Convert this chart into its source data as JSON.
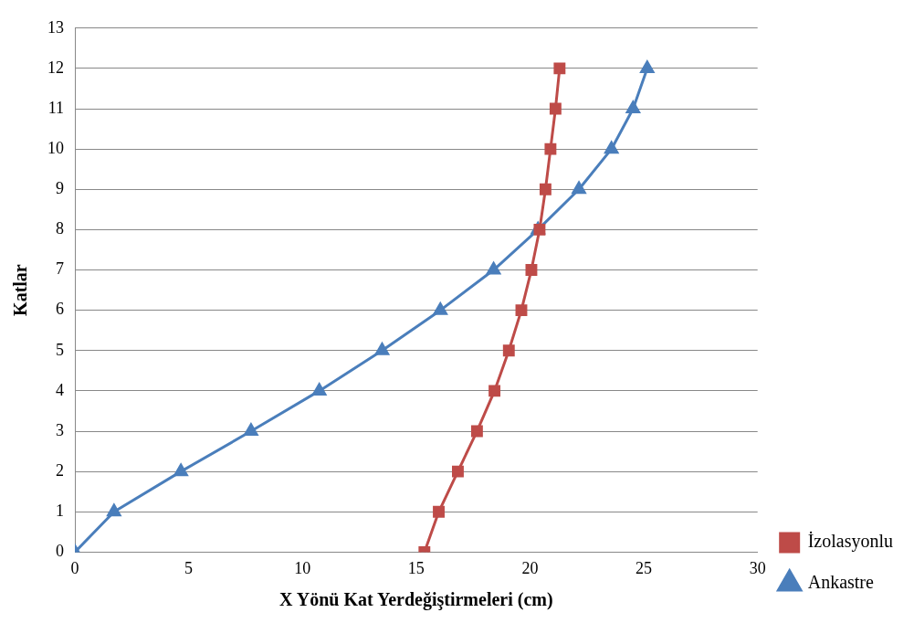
{
  "chart_data": {
    "type": "line",
    "xlabel": "X Yönü Kat Yerdeğiştirmeleri (cm)",
    "ylabel": "Katlar",
    "xlim": [
      0,
      30
    ],
    "xticks": [
      0,
      5,
      10,
      15,
      20,
      25,
      30
    ],
    "ylim": [
      0,
      13
    ],
    "yticks": [
      0,
      1,
      2,
      3,
      4,
      5,
      6,
      7,
      8,
      9,
      10,
      11,
      12,
      13
    ],
    "grid": "y",
    "legend": "right",
    "line_style": "solid",
    "series": [
      {
        "name": "Ankastre",
        "color": "#4a7ebb",
        "marker": "triangle",
        "x": [
          0,
          1.72,
          4.66,
          7.74,
          10.74,
          13.5,
          16.06,
          18.4,
          20.35,
          22.15,
          23.58,
          24.53,
          25.15
        ],
        "values": [
          0,
          1,
          2,
          3,
          4,
          5,
          6,
          7,
          8,
          9,
          10,
          11,
          12
        ]
      },
      {
        "name": "İzolasyonlu",
        "color": "#be4b48",
        "marker": "square",
        "x": [
          15.36,
          15.99,
          16.83,
          17.67,
          18.44,
          19.07,
          19.62,
          20.06,
          20.42,
          20.68,
          20.9,
          21.12,
          21.3
        ],
        "values": [
          0,
          1,
          2,
          3,
          4,
          5,
          6,
          7,
          8,
          9,
          10,
          11,
          12
        ]
      }
    ]
  }
}
